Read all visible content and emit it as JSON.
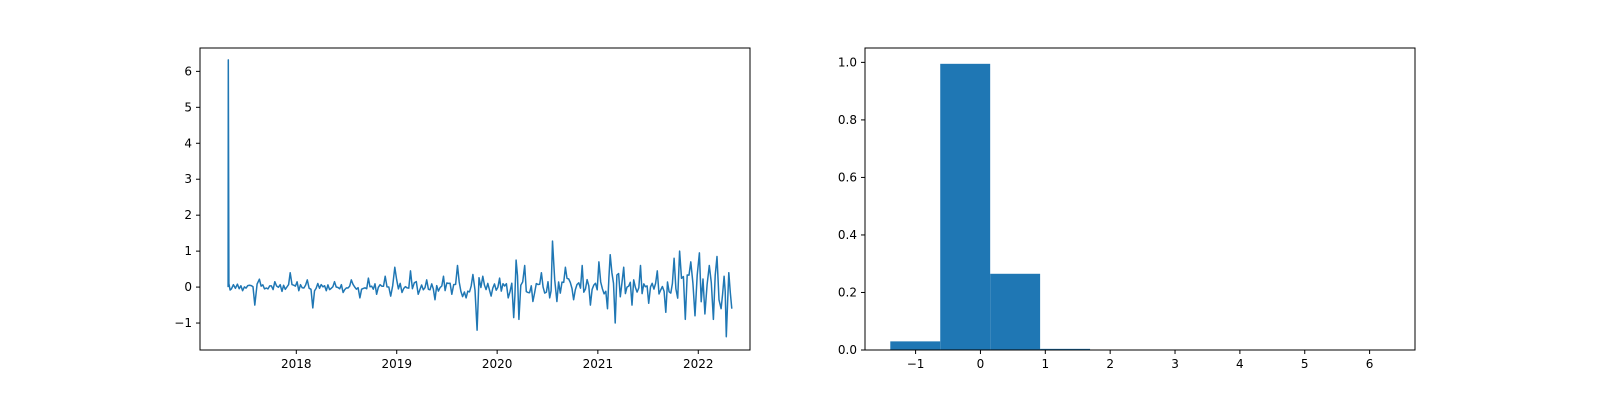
{
  "chart_data": [
    {
      "type": "line",
      "title": "",
      "xlabel": "",
      "ylabel": "",
      "xlim": [
        "2017-01-16",
        "2022-07-08"
      ],
      "ylim": [
        -1.75,
        6.65
      ],
      "grid": false,
      "color": "#1f77b4",
      "x_ticks": [
        "2018",
        "2019",
        "2020",
        "2021",
        "2022"
      ],
      "y_ticks": [
        "6",
        "5",
        "4",
        "3",
        "2",
        "1",
        "0",
        "−1"
      ],
      "x_start": "2017-04-28",
      "x_end": "2022-05-03",
      "series": [
        {
          "points": [
            [
              "2017-04-28",
              0.0
            ],
            [
              "2017-04-29",
              6.32
            ],
            [
              "2017-05-01",
              0.1
            ],
            [
              "2017-05-10",
              -0.05
            ],
            [
              "2017-06-01",
              0.08
            ],
            [
              "2017-06-20",
              -0.1
            ],
            [
              "2017-07-15",
              0.05
            ],
            [
              "2017-08-03",
              -0.5
            ],
            [
              "2017-08-20",
              0.22
            ],
            [
              "2017-09-20",
              -0.05
            ],
            [
              "2017-10-15",
              0.15
            ],
            [
              "2017-11-10",
              -0.12
            ],
            [
              "2017-12-10",
              0.4
            ],
            [
              "2018-01-10",
              -0.1
            ],
            [
              "2018-02-10",
              0.2
            ],
            [
              "2018-03-02",
              -0.58
            ],
            [
              "2018-03-20",
              0.1
            ],
            [
              "2018-04-20",
              -0.1
            ],
            [
              "2018-05-20",
              0.15
            ],
            [
              "2018-06-20",
              -0.15
            ],
            [
              "2018-07-20",
              0.2
            ],
            [
              "2018-08-20",
              -0.3
            ],
            [
              "2018-09-20",
              0.25
            ],
            [
              "2018-10-20",
              -0.2
            ],
            [
              "2018-11-20",
              0.3
            ],
            [
              "2018-12-10",
              -0.25
            ],
            [
              "2018-12-25",
              0.55
            ],
            [
              "2019-01-20",
              -0.15
            ],
            [
              "2019-02-20",
              0.45
            ],
            [
              "2019-03-20",
              -0.2
            ],
            [
              "2019-04-20",
              0.2
            ],
            [
              "2019-05-20",
              -0.35
            ],
            [
              "2019-06-20",
              0.3
            ],
            [
              "2019-07-20",
              -0.2
            ],
            [
              "2019-08-10",
              0.6
            ],
            [
              "2019-09-10",
              -0.3
            ],
            [
              "2019-10-05",
              0.35
            ],
            [
              "2019-10-20",
              -1.2
            ],
            [
              "2019-11-10",
              0.3
            ],
            [
              "2019-12-10",
              -0.25
            ],
            [
              "2020-01-10",
              0.25
            ],
            [
              "2020-02-10",
              -0.3
            ],
            [
              "2020-03-01",
              -0.85
            ],
            [
              "2020-03-10",
              0.75
            ],
            [
              "2020-03-20",
              -0.9
            ],
            [
              "2020-04-10",
              0.6
            ],
            [
              "2020-05-10",
              -0.4
            ],
            [
              "2020-06-10",
              0.4
            ],
            [
              "2020-07-10",
              -0.3
            ],
            [
              "2020-07-20",
              1.28
            ],
            [
              "2020-08-05",
              -0.4
            ],
            [
              "2020-09-05",
              0.55
            ],
            [
              "2020-10-05",
              -0.35
            ],
            [
              "2020-11-05",
              0.6
            ],
            [
              "2020-12-05",
              -0.5
            ],
            [
              "2021-01-05",
              0.7
            ],
            [
              "2021-02-05",
              -0.6
            ],
            [
              "2021-02-15",
              0.9
            ],
            [
              "2021-03-05",
              -1.0
            ],
            [
              "2021-04-05",
              0.55
            ],
            [
              "2021-05-05",
              -0.5
            ],
            [
              "2021-06-05",
              0.6
            ],
            [
              "2021-07-05",
              -0.45
            ],
            [
              "2021-08-05",
              0.45
            ],
            [
              "2021-09-05",
              -0.7
            ],
            [
              "2021-10-05",
              0.8
            ],
            [
              "2021-10-25",
              1.0
            ],
            [
              "2021-11-15",
              -0.9
            ],
            [
              "2021-12-05",
              0.7
            ],
            [
              "2021-12-20",
              -0.8
            ],
            [
              "2022-01-05",
              0.95
            ],
            [
              "2022-01-25",
              -0.75
            ],
            [
              "2022-02-10",
              0.6
            ],
            [
              "2022-02-25",
              -0.9
            ],
            [
              "2022-03-10",
              0.85
            ],
            [
              "2022-03-25",
              -0.6
            ],
            [
              "2022-04-05",
              0.3
            ],
            [
              "2022-04-13",
              -1.38
            ],
            [
              "2022-04-22",
              0.4
            ],
            [
              "2022-05-03",
              -0.6
            ]
          ]
        }
      ]
    },
    {
      "type": "bar",
      "title": "",
      "xlabel": "",
      "ylabel": "",
      "xlim": [
        -1.78,
        6.7
      ],
      "ylim": [
        0,
        1.05
      ],
      "grid": false,
      "color": "#1f77b4",
      "x_ticks": [
        "−1",
        "0",
        "1",
        "2",
        "3",
        "4",
        "5",
        "6"
      ],
      "y_ticks": [
        "0.0",
        "0.2",
        "0.4",
        "0.6",
        "0.8",
        "1.0"
      ],
      "bin_edges": [
        -1.39,
        -0.62,
        0.15,
        0.92,
        1.69,
        2.46,
        3.23,
        4.0,
        4.77,
        5.54,
        6.32
      ],
      "values": [
        0.03,
        0.995,
        0.265,
        0.004,
        0.001,
        0.0005,
        0.0005,
        0.0005,
        0.0005,
        0.0005
      ]
    }
  ]
}
